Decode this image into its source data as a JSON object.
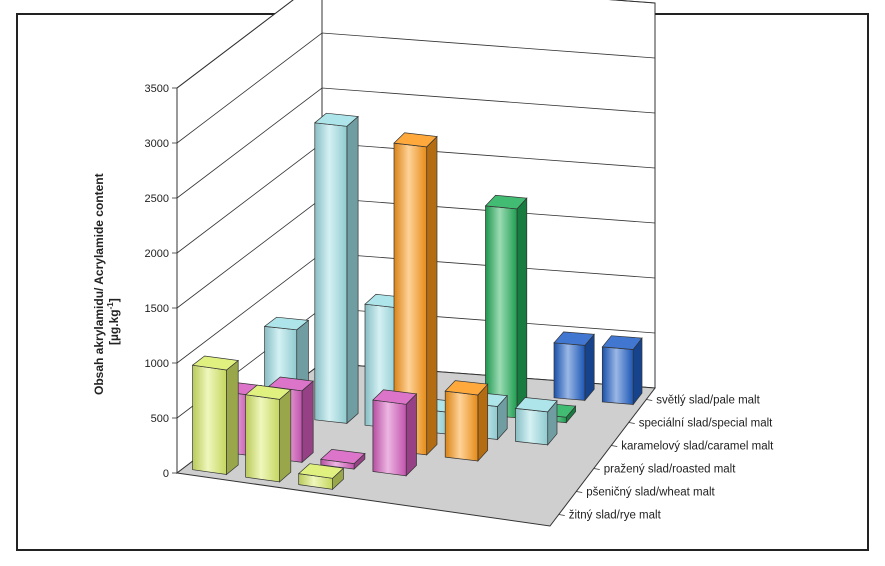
{
  "chart_data": {
    "type": "bar",
    "subtype": "3d-bar",
    "ylabel_line1": "Obsah akrylamidu/ Acrylamide content",
    "ylabel_line2": "[µg.kg",
    "ylabel_sup": "-1",
    "ylabel_end": "]",
    "ylim": [
      0,
      3500
    ],
    "yticks": [
      "0",
      "500",
      "1000",
      "1500",
      "2000",
      "2500",
      "3000",
      "3500"
    ],
    "grid": true,
    "categories": [
      "světlý slad/pale malt",
      "speciální slad/special malt",
      "karamelový slad/caramel malt",
      "pražený slad/roasted malt",
      "pšeničný slad/wheat malt",
      "žitný slad/rye malt"
    ],
    "colors": {
      "cyan": "#9fe0e6",
      "orange": "#ff9a1a",
      "green": "#22b05a",
      "blue": "#1f5fc8",
      "magenta": "#d65cbf",
      "yellow": "#dbee6a"
    },
    "bars": [
      {
        "category": 2,
        "slot": 0,
        "value": 800,
        "color": "cyan"
      },
      {
        "category": 2,
        "slot": 1,
        "value": 2700,
        "color": "cyan"
      },
      {
        "category": 2,
        "slot": 2,
        "value": 1100,
        "color": "cyan"
      },
      {
        "category": 2,
        "slot": 3,
        "value": 200,
        "color": "cyan"
      },
      {
        "category": 2,
        "slot": 4,
        "value": 300,
        "color": "cyan"
      },
      {
        "category": 2,
        "slot": 5,
        "value": 300,
        "color": "cyan"
      },
      {
        "category": 0,
        "slot": 5,
        "value": 500,
        "color": "blue"
      },
      {
        "category": 0,
        "slot": 6,
        "value": 500,
        "color": "blue"
      },
      {
        "category": 1,
        "slot": 4,
        "value": 1900,
        "color": "green"
      },
      {
        "category": 1,
        "slot": 5,
        "value": 50,
        "color": "green"
      },
      {
        "category": 3,
        "slot": 3,
        "value": 2800,
        "color": "orange"
      },
      {
        "category": 3,
        "slot": 4,
        "value": 600,
        "color": "orange"
      },
      {
        "category": 4,
        "slot": 0,
        "value": 550,
        "color": "magenta"
      },
      {
        "category": 4,
        "slot": 1,
        "value": 650,
        "color": "magenta"
      },
      {
        "category": 4,
        "slot": 2,
        "value": 50,
        "color": "magenta"
      },
      {
        "category": 4,
        "slot": 3,
        "value": 650,
        "color": "magenta"
      },
      {
        "category": 5,
        "slot": 0,
        "value": 950,
        "color": "yellow"
      },
      {
        "category": 5,
        "slot": 1,
        "value": 750,
        "color": "yellow"
      },
      {
        "category": 5,
        "slot": 2,
        "value": 100,
        "color": "yellow"
      }
    ]
  }
}
